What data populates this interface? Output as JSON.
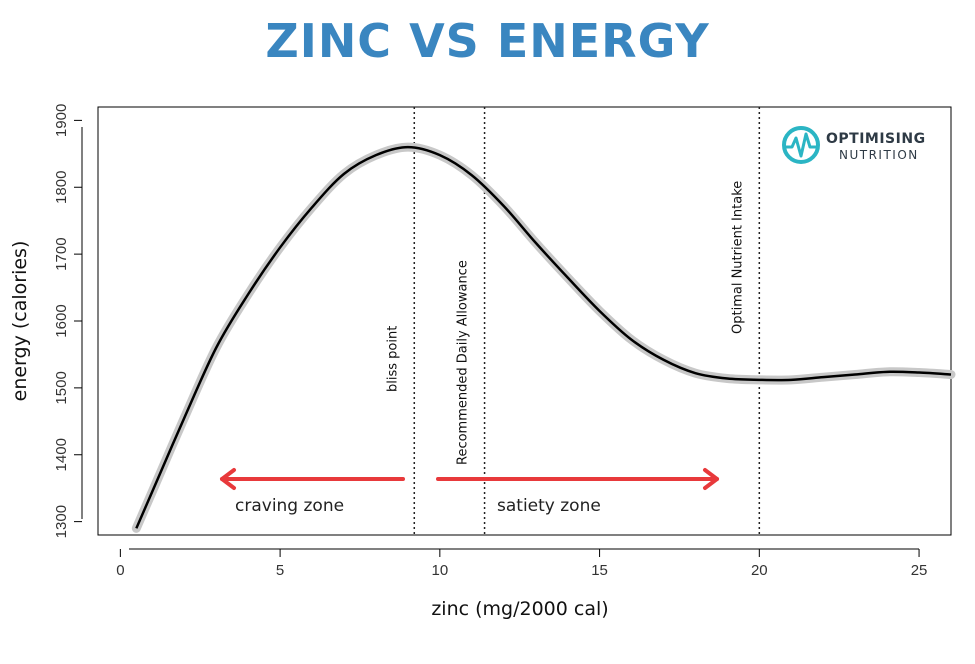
{
  "title": "ZINC VS ENERGY",
  "logo": {
    "main": "OPTIMISING",
    "sub": "NUTRITION",
    "color": "#2bb5c4"
  },
  "chart_data": {
    "type": "line",
    "title": "ZINC VS ENERGY",
    "xlabel": "zinc (mg/2000 cal)",
    "ylabel": "energy (calories)",
    "xlim": [
      -0.7,
      26
    ],
    "ylim": [
      1280,
      1920
    ],
    "xticks": [
      0,
      5,
      10,
      15,
      20,
      25
    ],
    "yticks": [
      1300,
      1400,
      1500,
      1600,
      1700,
      1800,
      1900
    ],
    "series": [
      {
        "color": "#000000",
        "band_color": "#c8c8c8",
        "x": [
          0.5,
          1,
          2,
          3,
          4,
          5,
          6,
          7,
          8,
          9,
          10,
          11,
          12,
          13,
          14,
          15,
          16,
          17,
          18,
          19,
          20,
          21,
          22,
          23,
          24,
          25,
          26
        ],
        "y": [
          1290,
          1345,
          1455,
          1560,
          1640,
          1710,
          1770,
          1820,
          1848,
          1860,
          1848,
          1818,
          1772,
          1717,
          1665,
          1615,
          1572,
          1542,
          1522,
          1514,
          1512,
          1512,
          1516,
          1520,
          1524,
          1523,
          1520
        ]
      }
    ],
    "vlines": [
      {
        "x": 9.2,
        "label": "bliss point"
      },
      {
        "x": 11.4,
        "label": "Recommended Daily Allowance"
      },
      {
        "x": 20,
        "label": "Optimal Nutrient Intake"
      }
    ],
    "zones": [
      {
        "label": "craving zone",
        "direction": "left"
      },
      {
        "label": "satiety zone",
        "direction": "right"
      }
    ],
    "arrow_color": "#e8393b",
    "grid": false
  }
}
